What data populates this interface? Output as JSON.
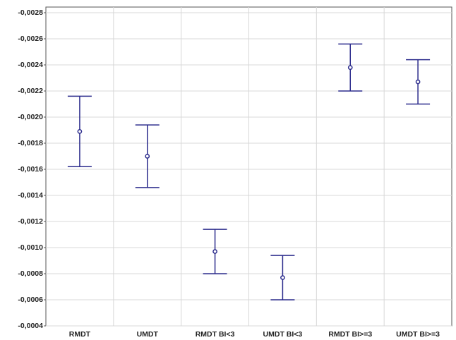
{
  "chart_data": {
    "type": "errorbar",
    "categories": [
      "RMDT",
      "UMDT",
      "RMDT BI<3",
      "UMDT BI<3",
      "RMDT BI>=3",
      "UMDT BI>=3"
    ],
    "values": [
      -0.00189,
      -0.0017,
      -0.00097,
      -0.00077,
      -0.00238,
      -0.00227
    ],
    "errors": [
      0.00027,
      0.00024,
      0.00017,
      0.00017,
      0.00018,
      0.00017
    ],
    "color": "#2b2b8c",
    "ylim": [
      -0.0004,
      -0.0028
    ],
    "yticks": [
      {
        "value": -0.0028,
        "label": "-0,0028"
      },
      {
        "value": -0.0026,
        "label": "-0,0026"
      },
      {
        "value": -0.0024,
        "label": "-0,0024"
      },
      {
        "value": -0.0022,
        "label": "-0,0022"
      },
      {
        "value": -0.002,
        "label": "-0,0020"
      },
      {
        "value": -0.0018,
        "label": "-0,0018"
      },
      {
        "value": -0.0016,
        "label": "-0,0016"
      },
      {
        "value": -0.0014,
        "label": "-0,0014"
      },
      {
        "value": -0.0012,
        "label": "-0,0012"
      },
      {
        "value": -0.001,
        "label": "-0,0010"
      },
      {
        "value": -0.0008,
        "label": "-0,0008"
      },
      {
        "value": -0.0006,
        "label": "-0,0006"
      },
      {
        "value": -0.0004,
        "label": "-0,0004"
      }
    ],
    "grid": true
  }
}
